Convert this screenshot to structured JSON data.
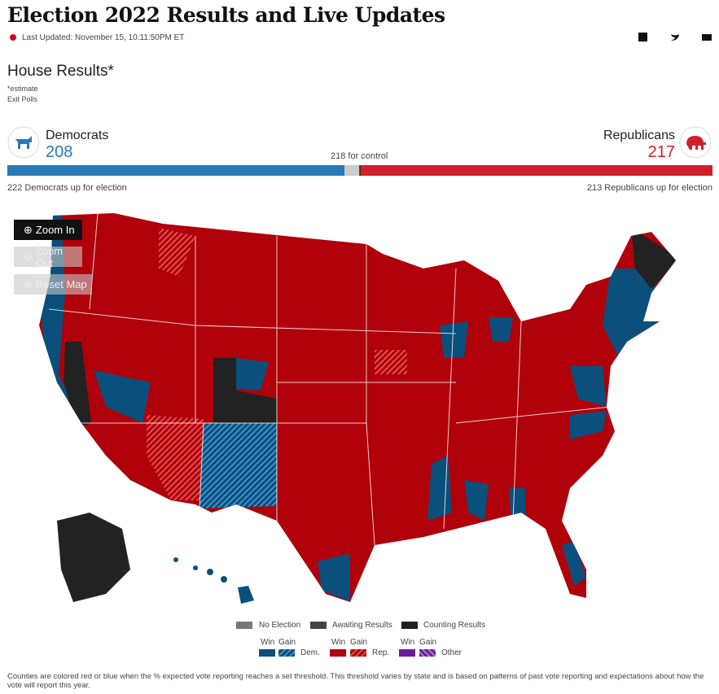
{
  "header": {
    "title": "Election 2022 Results and Live Updates",
    "last_updated": "Last Updated: November 15, 10:11:50PM ET"
  },
  "section": {
    "title": "House Results*",
    "notes": [
      "*estimate",
      "Exit Polls"
    ]
  },
  "democrats": {
    "name": "Democrats",
    "seats": 208,
    "up_for_election": "222 Democrats up for election"
  },
  "republicans": {
    "name": "Republicans",
    "seats": 217,
    "up_for_election": "213 Republicans up for election"
  },
  "control_label": "218 for control",
  "map_controls": [
    "Zoom In",
    "Zoom Out",
    "Reset Map"
  ],
  "legend": {
    "status": [
      "No Election",
      "Awaiting Results",
      "Counting Results"
    ],
    "parties": [
      {
        "win": "Win",
        "gain": "Gain",
        "name": "Dem."
      },
      {
        "win": "Win",
        "gain": "Gain",
        "name": "Rep."
      },
      {
        "win": "Win",
        "gain": "Gain",
        "name": "Other"
      }
    ]
  },
  "footnote": "Counties are colored red or blue when the % expected vote reporting reaches a set threshold. This threshold varies by state and is based on patterns of past vote reporting and expectations about how the vote will report this year."
}
